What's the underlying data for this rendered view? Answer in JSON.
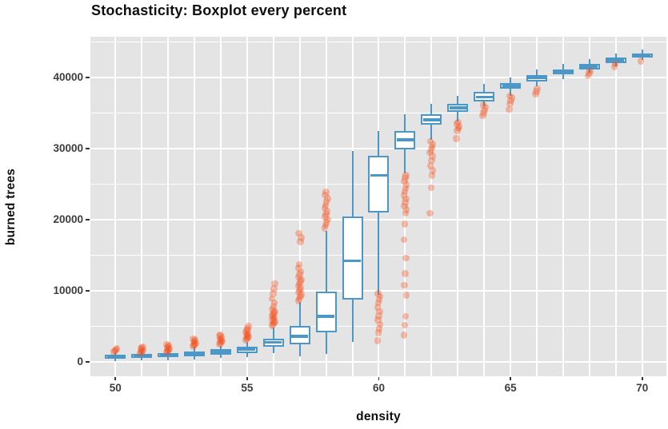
{
  "title": "Stochasticity: Boxplot every percent",
  "colors": {
    "page_bg": "#ffffff",
    "plot_bg": "#e4e4e4",
    "grid": "#ffffff",
    "box_stroke": "#4a97c8",
    "box_fill": "#ffffff",
    "outlier": "#f4511e",
    "outlier_alpha": 0.35,
    "tick_text": "#3d3d3d",
    "title_text": "#0e0e0e"
  },
  "chart_data": {
    "type": "boxplot",
    "title": "Stochasticity: Boxplot every percent",
    "xlabel": "density",
    "ylabel": "burned trees",
    "x_ticks": [
      50,
      55,
      60,
      65,
      70
    ],
    "y_ticks": [
      0,
      10000,
      20000,
      30000,
      40000
    ],
    "y_minor_ticks": [
      5000,
      15000,
      25000,
      35000,
      45000
    ],
    "x_gridline_step": 1,
    "xlim": [
      49.05,
      70.92
    ],
    "ylim": [
      -2000,
      45700
    ],
    "grid": "on",
    "legend": "none",
    "boxes": [
      {
        "x": 50,
        "whisker_low": 150,
        "q1": 500,
        "median": 750,
        "q3": 1050,
        "whisker_high": 1350,
        "outliers": [
          1450,
          1600,
          1750,
          1900
        ]
      },
      {
        "x": 51,
        "whisker_low": 200,
        "q1": 550,
        "median": 820,
        "q3": 1100,
        "whisker_high": 1450,
        "outliers": [
          1250,
          1400,
          1550,
          1700,
          1850,
          2000,
          2150
        ]
      },
      {
        "x": 52,
        "whisker_low": 250,
        "q1": 650,
        "median": 950,
        "q3": 1250,
        "whisker_high": 1700,
        "outliers": [
          1400,
          1550,
          1700,
          1850,
          2000,
          2150,
          2300,
          2450
        ]
      },
      {
        "x": 53,
        "whisker_low": 350,
        "q1": 800,
        "median": 1150,
        "q3": 1500,
        "whisker_high": 2100,
        "outliers": [
          2200,
          2350,
          2500,
          2650,
          2800,
          2950,
          3100,
          3300
        ]
      },
      {
        "x": 54,
        "whisker_low": 550,
        "q1": 1050,
        "median": 1400,
        "q3": 1800,
        "whisker_high": 2300,
        "outliers": [
          2500,
          2650,
          2800,
          2950,
          3100,
          3250,
          3450,
          3650,
          3850
        ]
      },
      {
        "x": 55,
        "whisker_low": 700,
        "q1": 1250,
        "median": 1800,
        "q3": 2200,
        "whisker_high": 2850,
        "outliers": [
          3100,
          3250,
          3400,
          3550,
          3700,
          3850,
          4000,
          4200,
          4450,
          4700,
          5000
        ]
      },
      {
        "x": 56,
        "whisker_low": 1300,
        "q1": 2100,
        "median": 2750,
        "q3": 3300,
        "whisker_high": 4900,
        "outliers": [
          5100,
          5300,
          5500,
          5700,
          5900,
          6100,
          6300,
          6500,
          6700,
          6900,
          7100,
          7400,
          7800,
          8300,
          8900,
          9600,
          10300,
          11000
        ]
      },
      {
        "x": 57,
        "whisker_low": 800,
        "q1": 2450,
        "median": 3600,
        "q3": 5100,
        "whisker_high": 8450,
        "outliers": [
          8600,
          8900,
          9200,
          9500,
          9800,
          10100,
          10400,
          10700,
          11000,
          11300,
          11600,
          11900,
          12300,
          12700,
          13200,
          13700,
          16900,
          17500,
          18100
        ]
      },
      {
        "x": 58,
        "whisker_low": 1150,
        "q1": 4150,
        "median": 6400,
        "q3": 9900,
        "whisker_high": 18400,
        "outliers": [
          18800,
          19200,
          19600,
          20000,
          20400,
          20800,
          21200,
          21600,
          22000,
          22500,
          23000,
          23500,
          23900
        ]
      },
      {
        "x": 59,
        "whisker_low": 2850,
        "q1": 8800,
        "median": 14200,
        "q3": 20500,
        "whisker_high": 29700,
        "outliers": []
      },
      {
        "x": 60,
        "whisker_low": 9400,
        "q1": 21000,
        "median": 26200,
        "q3": 29000,
        "whisker_high": 32500,
        "outliers": [
          3000,
          4100,
          4700,
          5300,
          5900,
          6500,
          7100,
          7700,
          8300,
          8800,
          9200,
          9600
        ]
      },
      {
        "x": 61,
        "whisker_low": 26500,
        "q1": 29900,
        "median": 31200,
        "q3": 32500,
        "whisker_high": 34800,
        "outliers": [
          3800,
          5200,
          6400,
          9400,
          10800,
          12400,
          14600,
          17200,
          19400,
          20900,
          21400,
          21900,
          22400,
          22900,
          23400,
          23900,
          24400,
          24900,
          25400,
          25900,
          26200
        ]
      },
      {
        "x": 62,
        "whisker_low": 31200,
        "q1": 33300,
        "median": 34000,
        "q3": 34800,
        "whisker_high": 36300,
        "outliers": [
          20900,
          24500,
          26200,
          26900,
          27600,
          28300,
          28900,
          29400,
          29800,
          30200,
          30600,
          31000
        ]
      },
      {
        "x": 63,
        "whisker_low": 33800,
        "q1": 35100,
        "median": 35700,
        "q3": 36300,
        "whisker_high": 37400,
        "outliers": [
          31400,
          32500,
          32800,
          33100,
          33400,
          33700
        ]
      },
      {
        "x": 64,
        "whisker_low": 35900,
        "q1": 36600,
        "median": 37200,
        "q3": 37900,
        "whisker_high": 39100,
        "outliers": [
          34600,
          35000,
          35400,
          35800,
          36100
        ]
      },
      {
        "x": 65,
        "whisker_low": 37400,
        "q1": 38400,
        "median": 38800,
        "q3": 39200,
        "whisker_high": 40000,
        "outliers": [
          35500,
          36300,
          36700,
          37100,
          37400
        ]
      },
      {
        "x": 66,
        "whisker_low": 38700,
        "q1": 39400,
        "median": 39900,
        "q3": 40300,
        "whisker_high": 41100,
        "outliers": [
          37600,
          38000,
          38400
        ]
      },
      {
        "x": 67,
        "whisker_low": 39800,
        "q1": 40400,
        "median": 40750,
        "q3": 41100,
        "whisker_high": 41900,
        "outliers": []
      },
      {
        "x": 68,
        "whisker_low": 40600,
        "q1": 41100,
        "median": 41500,
        "q3": 41900,
        "whisker_high": 42600,
        "outliers": [
          40200,
          40600,
          40900
        ]
      },
      {
        "x": 69,
        "whisker_low": 41500,
        "q1": 42050,
        "median": 42450,
        "q3": 42800,
        "whisker_high": 43350,
        "outliers": [
          41500,
          41900
        ]
      },
      {
        "x": 70,
        "whisker_low": 42450,
        "q1": 42800,
        "median": 43050,
        "q3": 43350,
        "whisker_high": 43900,
        "outliers": [
          42300
        ]
      }
    ]
  }
}
